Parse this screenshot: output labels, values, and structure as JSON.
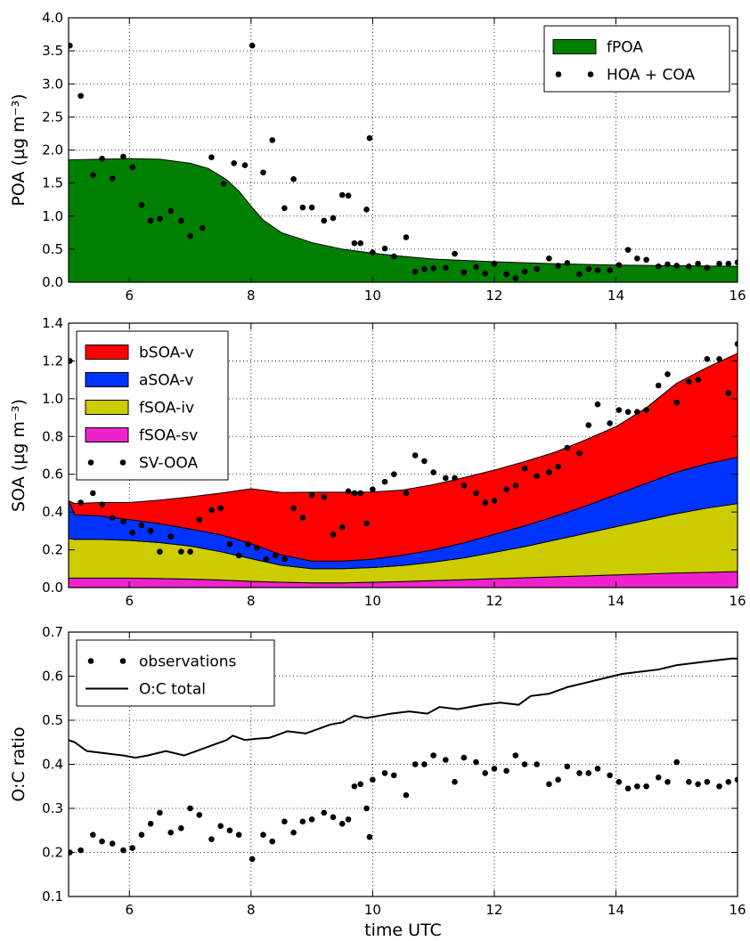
{
  "colors": {
    "fPOA": "#008000",
    "bSOA-v": "#ff0000",
    "aSOA-v": "#0033ff",
    "fSOA-iv": "#cccc00",
    "fSOA-sv": "#ee22cc",
    "observations": "#000000"
  },
  "chart_data": [
    {
      "type": "area",
      "xlabel": "",
      "ylabel": "POA (µg m⁻³)",
      "xlim": [
        5,
        16
      ],
      "ylim": [
        0,
        4
      ],
      "xticks": [
        6,
        8,
        10,
        12,
        14,
        16
      ],
      "yticks": [
        0.0,
        0.5,
        1.0,
        1.5,
        2.0,
        2.5,
        3.0,
        3.5,
        4.0
      ],
      "grid": true,
      "legend": {
        "placement": "top-right",
        "entries": [
          "fPOA",
          "HOA + COA"
        ]
      },
      "series": [
        {
          "name": "fPOA",
          "kind": "area",
          "x": [
            5,
            5.5,
            6,
            6.5,
            7,
            7.3,
            7.6,
            7.8,
            8.0,
            8.2,
            8.5,
            9.0,
            9.5,
            10,
            10.5,
            11,
            12,
            13,
            14,
            15,
            16
          ],
          "y": [
            1.85,
            1.86,
            1.87,
            1.86,
            1.8,
            1.72,
            1.55,
            1.38,
            1.15,
            0.94,
            0.75,
            0.6,
            0.5,
            0.44,
            0.39,
            0.35,
            0.31,
            0.28,
            0.26,
            0.25,
            0.24
          ]
        },
        {
          "name": "HOA + COA",
          "kind": "scatter",
          "x": [
            5.02,
            5.2,
            5.4,
            5.55,
            5.72,
            5.9,
            6.05,
            6.2,
            6.35,
            6.5,
            6.68,
            6.85,
            7.0,
            7.2,
            7.35,
            7.55,
            7.72,
            7.9,
            8.02,
            8.2,
            8.35,
            8.55,
            8.7,
            8.85,
            9.0,
            9.2,
            9.35,
            9.5,
            9.6,
            9.7,
            9.8,
            9.9,
            9.95,
            10.0,
            10.2,
            10.35,
            10.55,
            10.7,
            10.85,
            11.0,
            11.2,
            11.35,
            11.5,
            11.7,
            11.85,
            12.0,
            12.2,
            12.35,
            12.5,
            12.7,
            12.9,
            13.05,
            13.2,
            13.4,
            13.55,
            13.7,
            13.9,
            14.05,
            14.2,
            14.35,
            14.5,
            14.7,
            14.85,
            15.0,
            15.2,
            15.35,
            15.5,
            15.7,
            15.85,
            16.0
          ],
          "y": [
            3.58,
            2.82,
            1.62,
            1.87,
            1.57,
            1.9,
            1.74,
            1.17,
            0.93,
            0.96,
            1.08,
            0.93,
            0.7,
            0.82,
            1.89,
            1.49,
            1.8,
            1.77,
            3.58,
            1.66,
            2.15,
            1.12,
            1.56,
            1.13,
            1.13,
            0.93,
            0.97,
            1.32,
            1.31,
            0.59,
            0.59,
            1.1,
            2.18,
            0.45,
            0.51,
            0.39,
            0.68,
            0.16,
            0.2,
            0.21,
            0.22,
            0.43,
            0.15,
            0.23,
            0.13,
            0.28,
            0.12,
            0.06,
            0.16,
            0.2,
            0.36,
            0.25,
            0.29,
            0.12,
            0.2,
            0.18,
            0.18,
            0.26,
            0.49,
            0.36,
            0.34,
            0.24,
            0.27,
            0.25,
            0.24,
            0.28,
            0.22,
            0.28,
            0.28,
            0.3
          ]
        }
      ]
    },
    {
      "type": "area",
      "xlabel": "",
      "ylabel": "SOA (µg m⁻³)",
      "xlim": [
        5,
        16
      ],
      "ylim": [
        0,
        1.4
      ],
      "xticks": [
        6,
        8,
        10,
        12,
        14,
        16
      ],
      "yticks": [
        0.0,
        0.2,
        0.4,
        0.6,
        0.8,
        1.0,
        1.2,
        1.4
      ],
      "grid": true,
      "legend": {
        "placement": "top-left",
        "entries": [
          "bSOA-v",
          "aSOA-v",
          "fSOA-iv",
          "fSOA-sv",
          "SV-OOA"
        ]
      },
      "stacked": true,
      "x": [
        5,
        5.1,
        5.5,
        6,
        6.5,
        7,
        7.5,
        8,
        8.5,
        9,
        9.5,
        10,
        10.5,
        11,
        11.5,
        12,
        12.5,
        13,
        13.5,
        14,
        14.5,
        15,
        15.5,
        16
      ],
      "series": [
        {
          "name": "fSOA-sv",
          "kind": "area",
          "y": [
            0.05,
            0.05,
            0.05,
            0.05,
            0.048,
            0.045,
            0.04,
            0.033,
            0.028,
            0.025,
            0.025,
            0.028,
            0.032,
            0.037,
            0.042,
            0.047,
            0.052,
            0.057,
            0.062,
            0.067,
            0.072,
            0.077,
            0.081,
            0.085
          ]
        },
        {
          "name": "fSOA-iv",
          "kind": "area",
          "y": [
            0.21,
            0.205,
            0.205,
            0.2,
            0.19,
            0.175,
            0.15,
            0.12,
            0.09,
            0.075,
            0.075,
            0.078,
            0.085,
            0.098,
            0.115,
            0.14,
            0.165,
            0.195,
            0.225,
            0.255,
            0.285,
            0.315,
            0.34,
            0.36
          ]
        },
        {
          "name": "aSOA-v",
          "kind": "area",
          "y": [
            0.2,
            0.13,
            0.125,
            0.11,
            0.1,
            0.09,
            0.09,
            0.08,
            0.055,
            0.04,
            0.04,
            0.045,
            0.055,
            0.065,
            0.08,
            0.095,
            0.11,
            0.125,
            0.145,
            0.17,
            0.195,
            0.22,
            0.235,
            0.245
          ]
        },
        {
          "name": "bSOA-v",
          "kind": "area",
          "y": [
            0.0,
            0.06,
            0.07,
            0.09,
            0.125,
            0.17,
            0.22,
            0.29,
            0.33,
            0.365,
            0.365,
            0.355,
            0.345,
            0.345,
            0.345,
            0.34,
            0.34,
            0.34,
            0.35,
            0.36,
            0.4,
            0.47,
            0.51,
            0.55
          ]
        },
        {
          "name": "SV-OOA",
          "kind": "scatter",
          "x": [
            5.02,
            5.2,
            5.4,
            5.55,
            5.72,
            5.9,
            6.05,
            6.2,
            6.35,
            6.5,
            6.68,
            6.85,
            7.0,
            7.15,
            7.35,
            7.5,
            7.65,
            7.8,
            7.95,
            8.1,
            8.25,
            8.4,
            8.55,
            8.7,
            8.85,
            9.0,
            9.2,
            9.35,
            9.5,
            9.6,
            9.7,
            9.8,
            9.9,
            10.0,
            10.2,
            10.35,
            10.55,
            10.7,
            10.85,
            11.0,
            11.2,
            11.35,
            11.5,
            11.7,
            11.85,
            12.0,
            12.2,
            12.35,
            12.5,
            12.7,
            12.9,
            13.05,
            13.2,
            13.4,
            13.55,
            13.7,
            13.9,
            14.05,
            14.2,
            14.35,
            14.5,
            14.7,
            14.85,
            15.0,
            15.2,
            15.35,
            15.5,
            15.7,
            15.85,
            16.0
          ],
          "y": [
            1.2,
            0.45,
            0.5,
            0.44,
            0.37,
            0.35,
            0.29,
            0.33,
            0.3,
            0.19,
            0.27,
            0.19,
            0.19,
            0.36,
            0.41,
            0.42,
            0.23,
            0.17,
            0.23,
            0.21,
            0.15,
            0.17,
            0.15,
            0.42,
            0.37,
            0.49,
            0.48,
            0.28,
            0.32,
            0.51,
            0.5,
            0.5,
            0.34,
            0.52,
            0.56,
            0.6,
            0.5,
            0.7,
            0.67,
            0.61,
            0.58,
            0.58,
            0.54,
            0.5,
            0.45,
            0.46,
            0.52,
            0.54,
            0.63,
            0.59,
            0.61,
            0.64,
            0.74,
            0.71,
            0.86,
            0.97,
            0.87,
            0.94,
            0.93,
            0.93,
            0.94,
            1.07,
            1.13,
            0.98,
            1.09,
            1.1,
            1.21,
            1.21,
            1.03,
            1.29
          ]
        }
      ]
    },
    {
      "type": "line",
      "xlabel": "time UTC",
      "ylabel": "O:C ratio",
      "xlim": [
        5,
        16
      ],
      "ylim": [
        0.1,
        0.7
      ],
      "xticks": [
        6,
        8,
        10,
        12,
        14,
        16
      ],
      "yticks": [
        0.1,
        0.2,
        0.3,
        0.4,
        0.5,
        0.6,
        0.7
      ],
      "grid": true,
      "legend": {
        "placement": "top-left",
        "entries": [
          "observations",
          "O:C total"
        ]
      },
      "series": [
        {
          "name": "observations",
          "kind": "scatter",
          "x": [
            5.02,
            5.2,
            5.4,
            5.55,
            5.72,
            5.9,
            6.05,
            6.2,
            6.35,
            6.5,
            6.68,
            6.85,
            7.0,
            7.15,
            7.35,
            7.5,
            7.65,
            7.8,
            8.02,
            8.2,
            8.35,
            8.55,
            8.7,
            8.85,
            9.0,
            9.2,
            9.35,
            9.5,
            9.6,
            9.7,
            9.8,
            9.9,
            9.95,
            10.0,
            10.2,
            10.35,
            10.55,
            10.7,
            10.85,
            11.0,
            11.2,
            11.35,
            11.5,
            11.7,
            11.85,
            12.0,
            12.2,
            12.35,
            12.5,
            12.7,
            12.9,
            13.05,
            13.2,
            13.4,
            13.55,
            13.7,
            13.9,
            14.05,
            14.2,
            14.35,
            14.5,
            14.7,
            14.85,
            15.0,
            15.2,
            15.35,
            15.5,
            15.7,
            15.85,
            16.0
          ],
          "y": [
            0.2,
            0.205,
            0.24,
            0.225,
            0.22,
            0.205,
            0.21,
            0.24,
            0.265,
            0.29,
            0.245,
            0.255,
            0.3,
            0.285,
            0.23,
            0.26,
            0.25,
            0.24,
            0.185,
            0.24,
            0.225,
            0.27,
            0.245,
            0.27,
            0.275,
            0.29,
            0.28,
            0.265,
            0.275,
            0.35,
            0.355,
            0.3,
            0.235,
            0.365,
            0.38,
            0.375,
            0.33,
            0.4,
            0.4,
            0.42,
            0.41,
            0.36,
            0.415,
            0.405,
            0.38,
            0.39,
            0.385,
            0.42,
            0.4,
            0.4,
            0.355,
            0.365,
            0.395,
            0.38,
            0.38,
            0.39,
            0.375,
            0.36,
            0.345,
            0.35,
            0.35,
            0.37,
            0.36,
            0.405,
            0.36,
            0.355,
            0.36,
            0.35,
            0.36,
            0.365
          ]
        },
        {
          "name": "O:C total",
          "kind": "line",
          "x": [
            5,
            5.1,
            5.3,
            5.6,
            5.9,
            6.1,
            6.3,
            6.6,
            6.9,
            7.1,
            7.4,
            7.6,
            7.7,
            7.9,
            8.1,
            8.3,
            8.6,
            8.9,
            9.1,
            9.3,
            9.5,
            9.7,
            9.9,
            10.1,
            10.3,
            10.6,
            10.9,
            11.1,
            11.4,
            11.8,
            12.1,
            12.4,
            12.6,
            12.9,
            13.2,
            13.5,
            13.8,
            14.1,
            14.4,
            14.7,
            15.0,
            15.3,
            15.6,
            15.9,
            16.0
          ],
          "y": [
            0.455,
            0.45,
            0.43,
            0.425,
            0.42,
            0.415,
            0.42,
            0.43,
            0.42,
            0.43,
            0.445,
            0.455,
            0.465,
            0.455,
            0.458,
            0.46,
            0.475,
            0.47,
            0.48,
            0.49,
            0.495,
            0.51,
            0.505,
            0.51,
            0.515,
            0.52,
            0.515,
            0.53,
            0.525,
            0.535,
            0.54,
            0.535,
            0.555,
            0.56,
            0.575,
            0.585,
            0.595,
            0.605,
            0.61,
            0.615,
            0.625,
            0.63,
            0.635,
            0.64,
            0.64
          ]
        }
      ]
    }
  ]
}
